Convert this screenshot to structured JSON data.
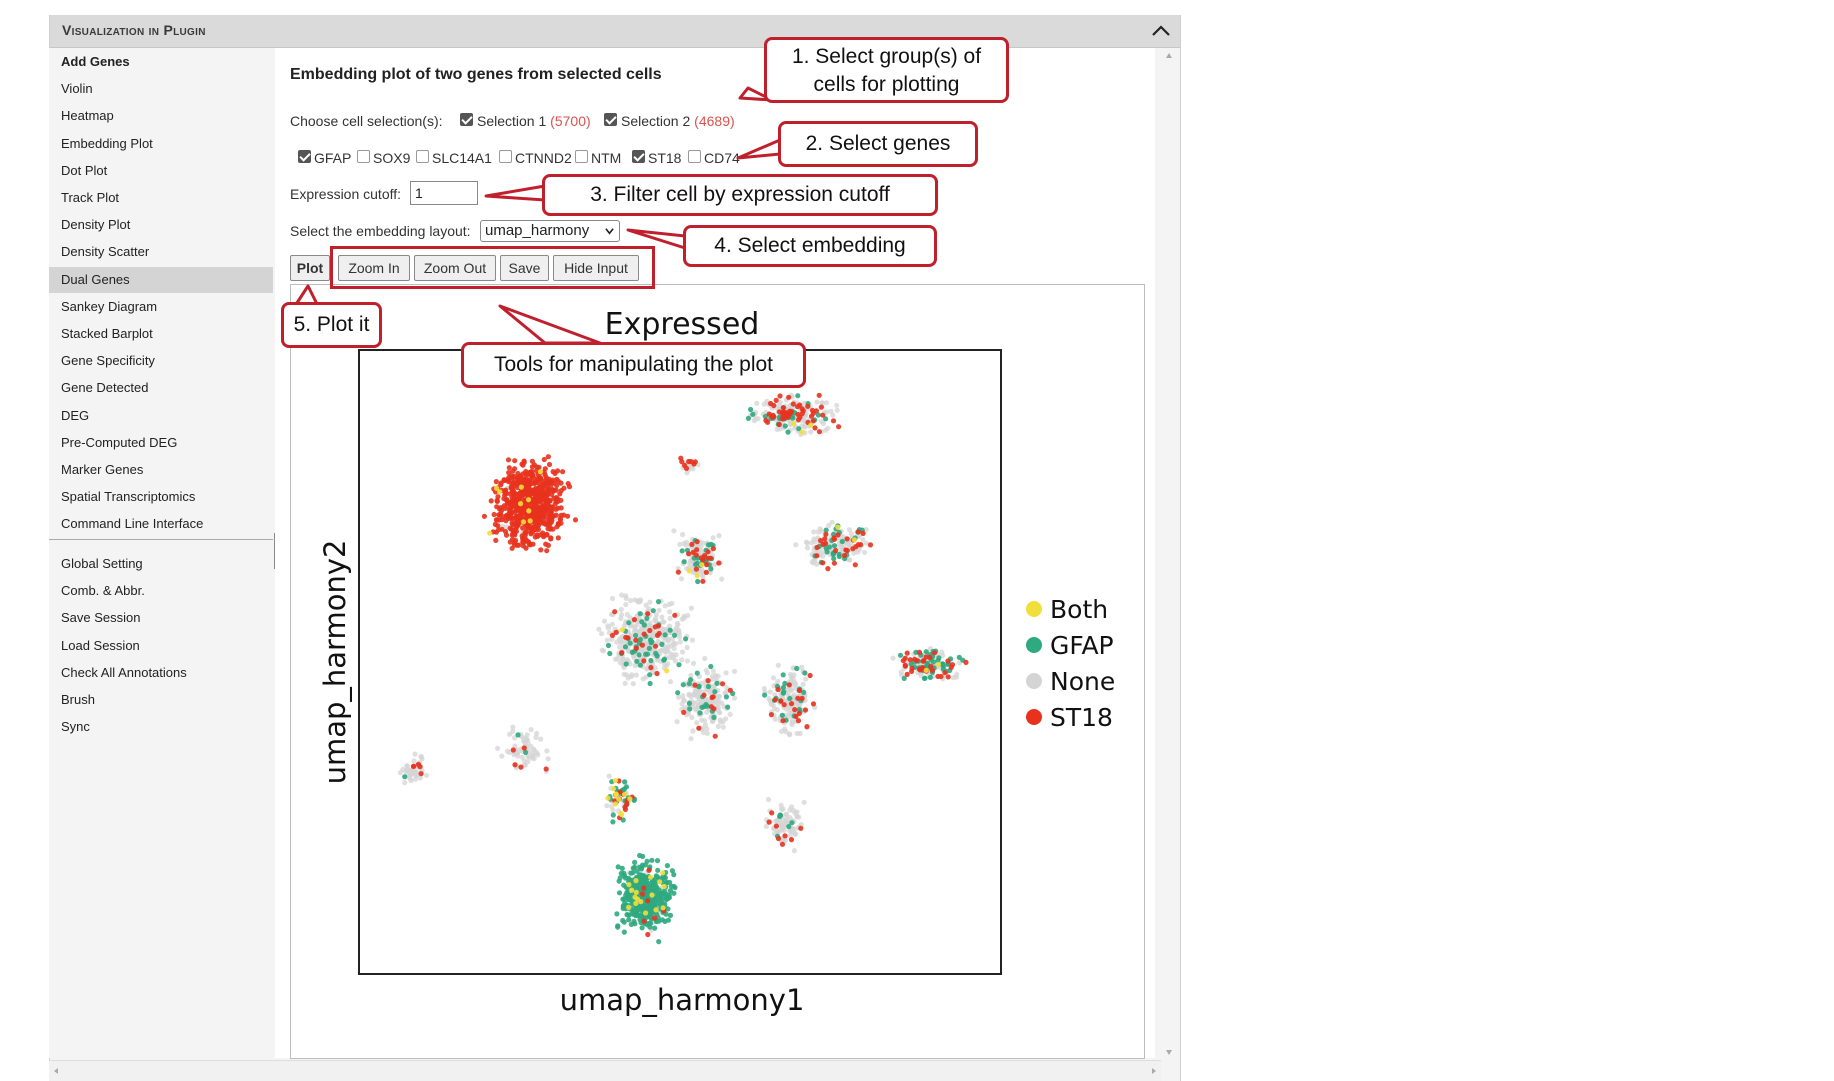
{
  "panel": {
    "title": "Visualization in Plugin"
  },
  "sidebar": {
    "items": [
      {
        "label": "Add Genes"
      },
      {
        "label": "Violin"
      },
      {
        "label": "Heatmap"
      },
      {
        "label": "Embedding Plot"
      },
      {
        "label": "Dot Plot"
      },
      {
        "label": "Track Plot"
      },
      {
        "label": "Density Plot"
      },
      {
        "label": "Density Scatter"
      },
      {
        "label": "Dual Genes"
      },
      {
        "label": "Sankey Diagram"
      },
      {
        "label": "Stacked Barplot"
      },
      {
        "label": "Gene Specificity"
      },
      {
        "label": "Gene Detected"
      },
      {
        "label": "DEG"
      },
      {
        "label": "Pre-Computed DEG"
      },
      {
        "label": "Marker Genes"
      },
      {
        "label": "Spatial Transcriptomics"
      },
      {
        "label": "Command Line Interface"
      }
    ],
    "active": "Dual Genes",
    "settings": [
      {
        "label": "Global Setting"
      },
      {
        "label": "Comb. & Abbr."
      },
      {
        "label": "Save Session"
      },
      {
        "label": "Load Session"
      },
      {
        "label": "Check All Annotations"
      },
      {
        "label": "Brush"
      },
      {
        "label": "Sync"
      }
    ]
  },
  "main": {
    "title": "Embedding plot of two genes from selected cells",
    "selection_label": "Choose cell selection(s):",
    "selections": [
      {
        "label": "Selection 1",
        "count": "(5700)",
        "checked": true
      },
      {
        "label": "Selection 2",
        "count": "(4689)",
        "checked": true
      }
    ],
    "genes": [
      {
        "label": "GFAP",
        "checked": true
      },
      {
        "label": "SOX9",
        "checked": false
      },
      {
        "label": "SLC14A1",
        "checked": false
      },
      {
        "label": "CTNND2",
        "checked": false
      },
      {
        "label": "NTM",
        "checked": false
      },
      {
        "label": "ST18",
        "checked": true
      },
      {
        "label": "CD74",
        "checked": false
      }
    ],
    "cutoff_label": "Expression cutoff:",
    "cutoff_value": "1",
    "layout_label": "Select the embedding layout:",
    "layout_value": "umap_harmony",
    "buttons": {
      "plot": "Plot",
      "zoom_in": "Zoom In",
      "zoom_out": "Zoom Out",
      "save": "Save",
      "hide_input": "Hide Input"
    }
  },
  "annotations": {
    "step1": "1. Select group(s) of cells for plotting",
    "step1_line1": "1. Select group(s) of",
    "step1_line2": "cells for plotting",
    "step2": "2. Select genes",
    "step3": "3. Filter cell by expression cutoff",
    "step4": "4. Select embedding",
    "step5": "5. Plot it",
    "tools": "Tools for manipulating the plot"
  },
  "colors": {
    "annotation_red": "#c0202c",
    "both": "#f2de3a",
    "gfap": "#2fa97f",
    "none": "#d4d4d4",
    "st18": "#e8321e"
  },
  "chart_data": {
    "type": "scatter",
    "title": "Expressed",
    "xlabel": "umap_harmony1",
    "ylabel": "umap_harmony2",
    "legend_position": "right",
    "series": [
      {
        "name": "Both"
      },
      {
        "name": "GFAP"
      },
      {
        "name": "None"
      },
      {
        "name": "ST18"
      }
    ]
  }
}
